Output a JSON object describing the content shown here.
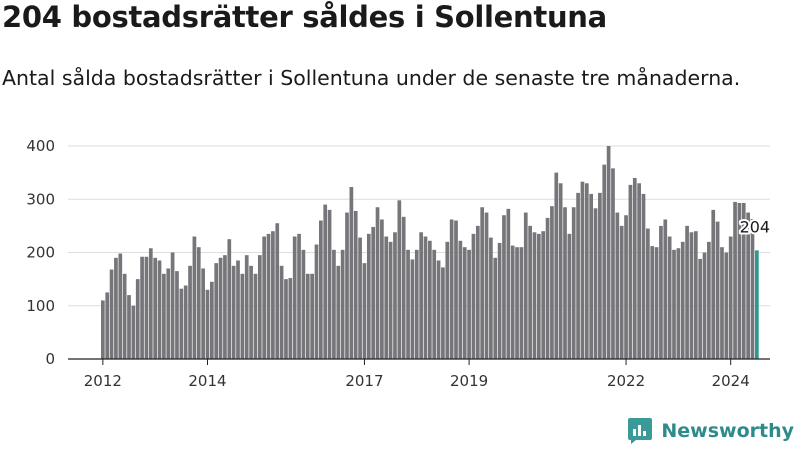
{
  "header": {
    "title": "204 bostadsrätter såldes i Sollentuna",
    "subtitle": "Antal sålda bostadsrätter i Sollentuna under de senaste tre månaderna."
  },
  "brand": {
    "name": "Newsworthy"
  },
  "colors": {
    "bar": "#76757a",
    "highlight": "#2a9a8e",
    "grid": "#dddddd",
    "accent": "#2e8b8b"
  },
  "chart_data": {
    "type": "bar",
    "title": "204 bostadsrätter såldes i Sollentuna",
    "subtitle": "Antal sålda bostadsrätter i Sollentuna under de senaste tre månaderna.",
    "xlabel": "",
    "ylabel": "",
    "ylim": [
      0,
      400
    ],
    "yticks": [
      0,
      100,
      200,
      300,
      400
    ],
    "grid": true,
    "start": "2012-01",
    "xticks": [
      {
        "label": "2012",
        "index": 0
      },
      {
        "label": "2014",
        "index": 24
      },
      {
        "label": "2017",
        "index": 60
      },
      {
        "label": "2019",
        "index": 84
      },
      {
        "label": "2022",
        "index": 120
      },
      {
        "label": "2024",
        "index": 144
      }
    ],
    "values": [
      110,
      125,
      168,
      190,
      198,
      160,
      120,
      100,
      150,
      192,
      192,
      208,
      190,
      185,
      160,
      170,
      200,
      165,
      132,
      138,
      175,
      230,
      210,
      170,
      130,
      145,
      180,
      190,
      195,
      225,
      175,
      185,
      160,
      195,
      175,
      160,
      195,
      230,
      235,
      240,
      255,
      175,
      150,
      152,
      230,
      235,
      205,
      160,
      160,
      215,
      260,
      290,
      280,
      205,
      175,
      205,
      275,
      323,
      278,
      228,
      180,
      235,
      248,
      285,
      262,
      230,
      220,
      238,
      298,
      267,
      205,
      187,
      205,
      238,
      230,
      222,
      205,
      185,
      172,
      220,
      262,
      260,
      222,
      210,
      205,
      235,
      250,
      285,
      275,
      228,
      190,
      218,
      270,
      282,
      213,
      210,
      210,
      275,
      250,
      238,
      235,
      240,
      265,
      287,
      350,
      330,
      285,
      235,
      285,
      312,
      333,
      330,
      310,
      283,
      312,
      365,
      400,
      358,
      275,
      250,
      270,
      327,
      340,
      330,
      310,
      245,
      212,
      210,
      250,
      262,
      230,
      205,
      208,
      220,
      250,
      238,
      240,
      188,
      200,
      220,
      280,
      258,
      210,
      200,
      230,
      295,
      293,
      293,
      275,
      263,
      204
    ],
    "last_value": 204,
    "last_label": "204"
  }
}
